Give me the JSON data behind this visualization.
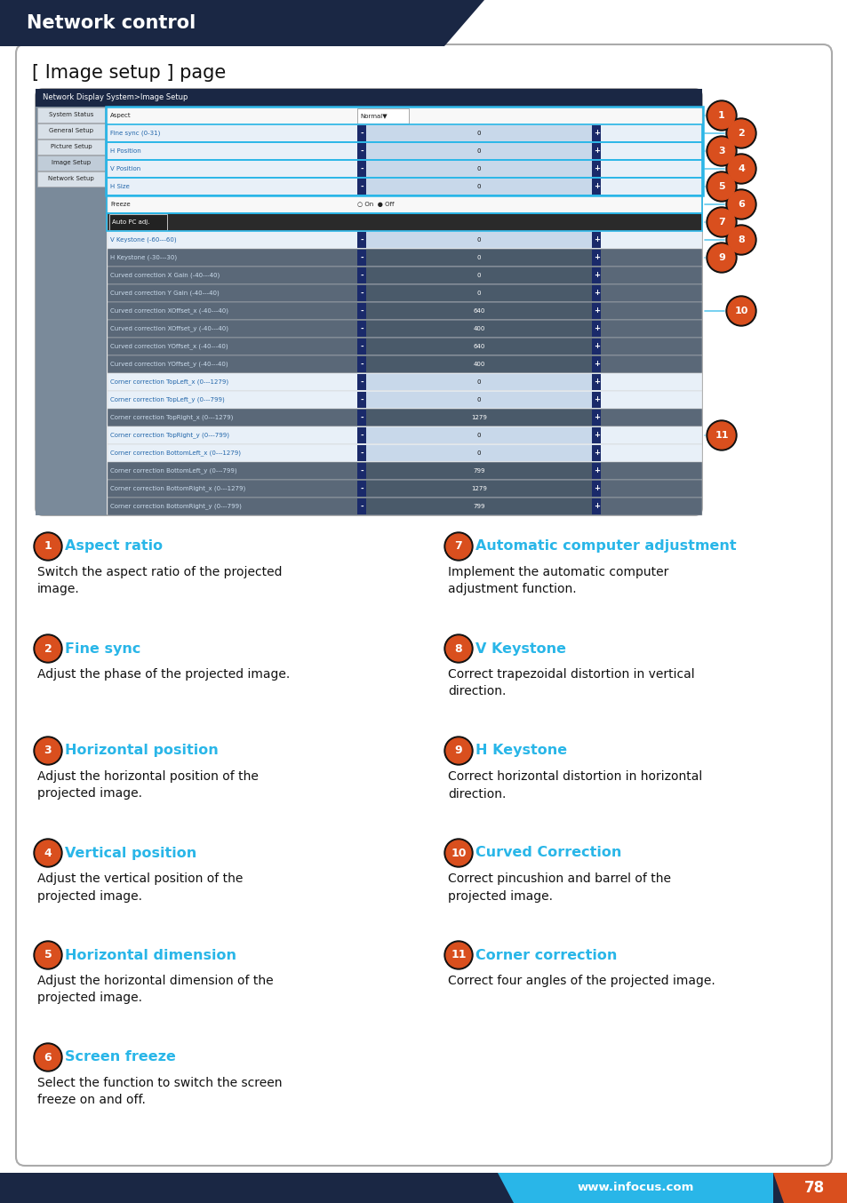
{
  "title": "Network control",
  "title_bg": "#1a2744",
  "page_bg": "#ffffff",
  "footer_bg": "#1a2744",
  "footer_cyan_bg": "#29b6e8",
  "footer_orange_bg": "#d94f1e",
  "footer_text": "www.infocus.com",
  "footer_page": "78",
  "box_title": "[ Image setup ] page",
  "nav_bar_bg": "#1a2744",
  "nav_bar_text": "Network Display System>Image Setup",
  "nav_items": [
    "System Status",
    "General Setup",
    "Picture Setup",
    "Image Setup",
    "Network Setup"
  ],
  "table_rows": [
    {
      "label": "Aspect",
      "value": "Normal",
      "type": "dropdown"
    },
    {
      "label": "Fine sync (0-31)",
      "value": "0",
      "type": "slider_light"
    },
    {
      "label": "H Position",
      "value": "0",
      "type": "slider_light"
    },
    {
      "label": "V Position",
      "value": "0",
      "type": "slider_light"
    },
    {
      "label": "H Size",
      "value": "0",
      "type": "slider_light"
    },
    {
      "label": "Freeze",
      "value": "On  Off",
      "type": "radio"
    },
    {
      "label": "Auto PC adj.",
      "value": "",
      "type": "button"
    },
    {
      "label": "V Keystone (-60---60)",
      "value": "0",
      "type": "slider_light"
    },
    {
      "label": "H Keystone (-30---30)",
      "value": "0",
      "type": "slider_dark"
    },
    {
      "label": "Curved correction X Gain (-40---40)",
      "value": "0",
      "type": "slider_dark"
    },
    {
      "label": "Curved correction Y Gain (-40---40)",
      "value": "0",
      "type": "slider_dark"
    },
    {
      "label": "Curved correction XOffset_x (-40---40)",
      "value": "640",
      "type": "slider_dark"
    },
    {
      "label": "Curved correction XOffset_y (-40---40)",
      "value": "400",
      "type": "slider_dark"
    },
    {
      "label": "Curved correction YOffset_x (-40---40)",
      "value": "640",
      "type": "slider_dark"
    },
    {
      "label": "Curved correction YOffset_y (-40---40)",
      "value": "400",
      "type": "slider_dark"
    },
    {
      "label": "Corner correction TopLeft_x (0---1279)",
      "value": "0",
      "type": "slider_light"
    },
    {
      "label": "Corner correction TopLeft_y (0---799)",
      "value": "0",
      "type": "slider_light"
    },
    {
      "label": "Corner correction TopRight_x (0---1279)",
      "value": "1279",
      "type": "slider_dark"
    },
    {
      "label": "Corner correction TopRight_y (0---799)",
      "value": "0",
      "type": "slider_light"
    },
    {
      "label": "Corner correction BottomLeft_x (0---1279)",
      "value": "0",
      "type": "slider_light"
    },
    {
      "label": "Corner correction BottomLeft_y (0---799)",
      "value": "799",
      "type": "slider_dark"
    },
    {
      "label": "Corner correction BottomRight_x (0---1279)",
      "value": "1279",
      "type": "slider_dark"
    },
    {
      "label": "Corner correction BottomRight_y (0---799)",
      "value": "799",
      "type": "slider_dark"
    }
  ],
  "callouts_on_image": [
    {
      "num": "1",
      "row": 0
    },
    {
      "num": "2",
      "row": 1
    },
    {
      "num": "3",
      "row": 2
    },
    {
      "num": "4",
      "row": 3
    },
    {
      "num": "5",
      "row": 4
    },
    {
      "num": "6",
      "row": 5
    },
    {
      "num": "7",
      "row": 6
    },
    {
      "num": "8",
      "row": 7
    },
    {
      "num": "9",
      "row": 8
    },
    {
      "num": "10",
      "row": 11
    },
    {
      "num": "11",
      "row": 18
    }
  ],
  "desc_layout": [
    {
      "num": "1",
      "heading": "Aspect ratio",
      "text": "Switch the aspect ratio of the projected\nimage.",
      "col": 0,
      "row": 0
    },
    {
      "num": "7",
      "heading": "Automatic computer adjustment",
      "text": "Implement the automatic computer\nadjustment function.",
      "col": 1,
      "row": 0
    },
    {
      "num": "2",
      "heading": "Fine sync",
      "text": "Adjust the phase of the projected image.",
      "col": 0,
      "row": 1
    },
    {
      "num": "8",
      "heading": "V Keystone",
      "text": "Correct trapezoidal distortion in vertical\ndirection.",
      "col": 1,
      "row": 1
    },
    {
      "num": "3",
      "heading": "Horizontal position",
      "text": "Adjust the horizontal position of the\nprojected image.",
      "col": 0,
      "row": 2
    },
    {
      "num": "9",
      "heading": "H Keystone",
      "text": "Correct horizontal distortion in horizontal\ndirection.",
      "col": 1,
      "row": 2
    },
    {
      "num": "4",
      "heading": "Vertical position",
      "text": "Adjust the vertical position of the\nprojected image.",
      "col": 0,
      "row": 3
    },
    {
      "num": "10",
      "heading": "Curved Correction",
      "text": "Correct pincushion and barrel of the\nprojected image.",
      "col": 1,
      "row": 3
    },
    {
      "num": "5",
      "heading": "Horizontal dimension",
      "text": "Adjust the horizontal dimension of the\nprojected image.",
      "col": 0,
      "row": 4
    },
    {
      "num": "11",
      "heading": "Corner correction",
      "text": "Correct four angles of the projected image.",
      "col": 1,
      "row": 4
    },
    {
      "num": "6",
      "heading": "Screen freeze",
      "text": "Select the function to switch the screen\nfreeze on and off.",
      "col": 0,
      "row": 5
    }
  ],
  "heading_color": "#29b6e8",
  "callout_bg": "#d94f1e",
  "callout_border": "#000000",
  "callout_text_color": "#ffffff"
}
